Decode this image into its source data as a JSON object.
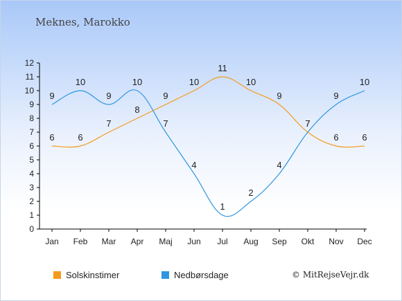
{
  "chart_data": {
    "type": "line",
    "title": "Meknes, Marokko",
    "categories": [
      "Jan",
      "Feb",
      "Mar",
      "Apr",
      "Maj",
      "Jun",
      "Jul",
      "Aug",
      "Sep",
      "Okt",
      "Nov",
      "Dec"
    ],
    "series": [
      {
        "name": "Solskinstimer",
        "color": "#f59a1e",
        "values": [
          6,
          6,
          7,
          8,
          9,
          10,
          11,
          10,
          9,
          7,
          6,
          6
        ]
      },
      {
        "name": "Nedbørsdage",
        "color": "#2f95e0",
        "values": [
          9,
          10,
          9,
          10,
          7,
          4,
          1,
          2,
          4,
          7,
          9,
          10
        ]
      }
    ],
    "yticks": [
      0,
      1,
      2,
      3,
      4,
      5,
      6,
      7,
      8,
      9,
      10,
      11,
      12
    ],
    "ylim": [
      0,
      12
    ],
    "xlabel": "",
    "ylabel": "",
    "grid": false,
    "legend_position": "bottom-left"
  },
  "copyright": "© MitRejseVejr.dk"
}
